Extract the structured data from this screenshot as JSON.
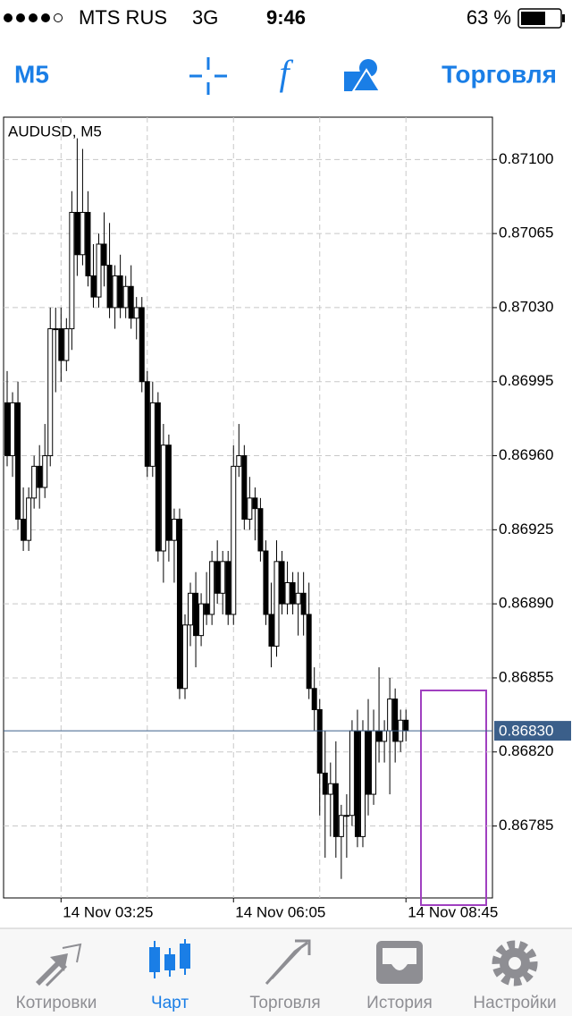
{
  "status_bar": {
    "carrier": "MTS RUS",
    "network": "3G",
    "time": "9:46",
    "battery": "63 %"
  },
  "toolbar": {
    "timeframe": "M5",
    "trade": "Торговля"
  },
  "chart_data": {
    "type": "candlestick",
    "title": "AUDUSD, M5",
    "categories": [
      null,
      null,
      null,
      null,
      null,
      null,
      null,
      null,
      null,
      null,
      "14 Nov 03:25",
      null,
      null,
      null,
      null,
      null,
      null,
      null,
      null,
      null,
      null,
      null,
      null,
      null,
      null,
      null,
      null,
      null,
      null,
      null,
      null,
      null,
      null,
      null,
      null,
      null,
      null,
      null,
      null,
      null,
      null,
      null,
      "14 Nov 06:05",
      null,
      null,
      null,
      null,
      null,
      null,
      null,
      null,
      null,
      null,
      null,
      null,
      null,
      null,
      null,
      null,
      null,
      null,
      null,
      null,
      null,
      null,
      null,
      null,
      null,
      null,
      null,
      null,
      null,
      null,
      null,
      "14 Nov 08:45"
    ],
    "open": [
      0.86985,
      0.8696,
      0.86985,
      0.8693,
      0.8692,
      0.8694,
      0.86955,
      0.86945,
      0.8696,
      0.8702,
      0.8702,
      0.87005,
      0.8702,
      0.87075,
      0.87055,
      0.87075,
      0.87045,
      0.87035,
      0.8706,
      0.8705,
      0.8703,
      0.87045,
      0.8703,
      0.8704,
      0.87025,
      0.8703,
      0.86995,
      0.86955,
      0.86985,
      0.86915,
      0.86965,
      0.8692,
      0.8693,
      0.8685,
      0.8688,
      0.86895,
      0.86875,
      0.8689,
      0.86885,
      0.8691,
      0.86895,
      0.8691,
      0.86885,
      0.86955,
      0.8696,
      0.8693,
      0.8694,
      0.86935,
      0.86915,
      0.86885,
      0.8687,
      0.8691,
      0.8689,
      0.869,
      0.8689,
      0.86895,
      0.86885,
      0.8685,
      0.8684,
      0.8681,
      0.868,
      0.86805,
      0.8678,
      0.8679,
      0.8679,
      0.8683,
      0.8678,
      0.8683,
      0.868,
      0.8683,
      0.86825,
      0.8683,
      0.86845,
      0.86825,
      0.86835
    ],
    "high": [
      0.87,
      0.8699,
      0.86995,
      0.86945,
      0.86945,
      0.8696,
      0.86965,
      0.86975,
      0.8703,
      0.8703,
      0.8703,
      0.87025,
      0.87085,
      0.8711,
      0.87105,
      0.87085,
      0.8706,
      0.87065,
      0.87075,
      0.8707,
      0.8705,
      0.87055,
      0.87045,
      0.8705,
      0.87035,
      0.87035,
      0.87,
      0.86995,
      0.8699,
      0.86975,
      0.8697,
      0.86935,
      0.86935,
      0.86885,
      0.869,
      0.86905,
      0.86895,
      0.86905,
      0.86915,
      0.8692,
      0.86915,
      0.86915,
      0.86965,
      0.86975,
      0.86965,
      0.8695,
      0.86945,
      0.8694,
      0.8692,
      0.869,
      0.8692,
      0.86915,
      0.8691,
      0.86905,
      0.86905,
      0.86905,
      0.869,
      0.8686,
      0.86845,
      0.8683,
      0.86815,
      0.86825,
      0.86795,
      0.868,
      0.86835,
      0.8684,
      0.86835,
      0.86845,
      0.8684,
      0.8686,
      0.86835,
      0.86855,
      0.8685,
      0.8684,
      0.8684
    ],
    "low": [
      0.86955,
      0.8695,
      0.86925,
      0.86915,
      0.86915,
      0.86935,
      0.86935,
      0.8694,
      0.86955,
      0.8699,
      0.86995,
      0.87,
      0.8701,
      0.87045,
      0.8705,
      0.8704,
      0.8703,
      0.8703,
      0.8704,
      0.87025,
      0.8702,
      0.87025,
      0.87025,
      0.8702,
      0.87015,
      0.8699,
      0.8695,
      0.8695,
      0.8691,
      0.869,
      0.8691,
      0.869,
      0.86845,
      0.86845,
      0.8687,
      0.8686,
      0.8687,
      0.8688,
      0.8688,
      0.8689,
      0.86885,
      0.8688,
      0.8688,
      0.8695,
      0.86925,
      0.86925,
      0.8692,
      0.8691,
      0.8688,
      0.8686,
      0.86865,
      0.86885,
      0.86885,
      0.86885,
      0.86875,
      0.86875,
      0.86845,
      0.8683,
      0.8679,
      0.8677,
      0.8678,
      0.8677,
      0.8676,
      0.8677,
      0.86785,
      0.86775,
      0.86775,
      0.8679,
      0.86795,
      0.86815,
      0.86815,
      0.868,
      0.86815,
      0.8682,
      0.86825
    ],
    "close": [
      0.8696,
      0.86985,
      0.8693,
      0.8692,
      0.8694,
      0.86955,
      0.86945,
      0.8696,
      0.8702,
      0.8702,
      0.87005,
      0.8702,
      0.87075,
      0.87055,
      0.87075,
      0.87045,
      0.87035,
      0.8706,
      0.8705,
      0.8703,
      0.87045,
      0.8703,
      0.8704,
      0.87025,
      0.8703,
      0.86995,
      0.86955,
      0.86985,
      0.86915,
      0.86965,
      0.8692,
      0.8693,
      0.8685,
      0.8688,
      0.86895,
      0.86875,
      0.8689,
      0.86885,
      0.8691,
      0.86895,
      0.8691,
      0.86885,
      0.86955,
      0.8696,
      0.8693,
      0.8694,
      0.86935,
      0.86915,
      0.86885,
      0.8687,
      0.8691,
      0.8689,
      0.869,
      0.8689,
      0.86895,
      0.86885,
      0.8685,
      0.8684,
      0.8681,
      0.868,
      0.86805,
      0.8678,
      0.8679,
      0.8679,
      0.8683,
      0.8678,
      0.8683,
      0.868,
      0.8683,
      0.86825,
      0.8683,
      0.86845,
      0.86825,
      0.86835,
      0.8683
    ],
    "ylim": [
      0.86751,
      0.8712
    ],
    "yticks": [
      {
        "value": 0.871,
        "label": "0.87100"
      },
      {
        "value": 0.87065,
        "label": "0.87065"
      },
      {
        "value": 0.8703,
        "label": "0.87030"
      },
      {
        "value": 0.86995,
        "label": "0.86995"
      },
      {
        "value": 0.8696,
        "label": "0.86960"
      },
      {
        "value": 0.86925,
        "label": "0.86925"
      },
      {
        "value": 0.8689,
        "label": "0.86890"
      },
      {
        "value": 0.86855,
        "label": "0.86855"
      },
      {
        "value": 0.8682,
        "label": "0.86820"
      },
      {
        "value": 0.86785,
        "label": "0.86785"
      }
    ],
    "current_price": {
      "value": 0.8683,
      "label": "0.86830"
    },
    "grid": true
  },
  "tab_bar": {
    "tabs": [
      "Котировки",
      "Чарт",
      "Торговля",
      "История",
      "Настройки"
    ]
  }
}
